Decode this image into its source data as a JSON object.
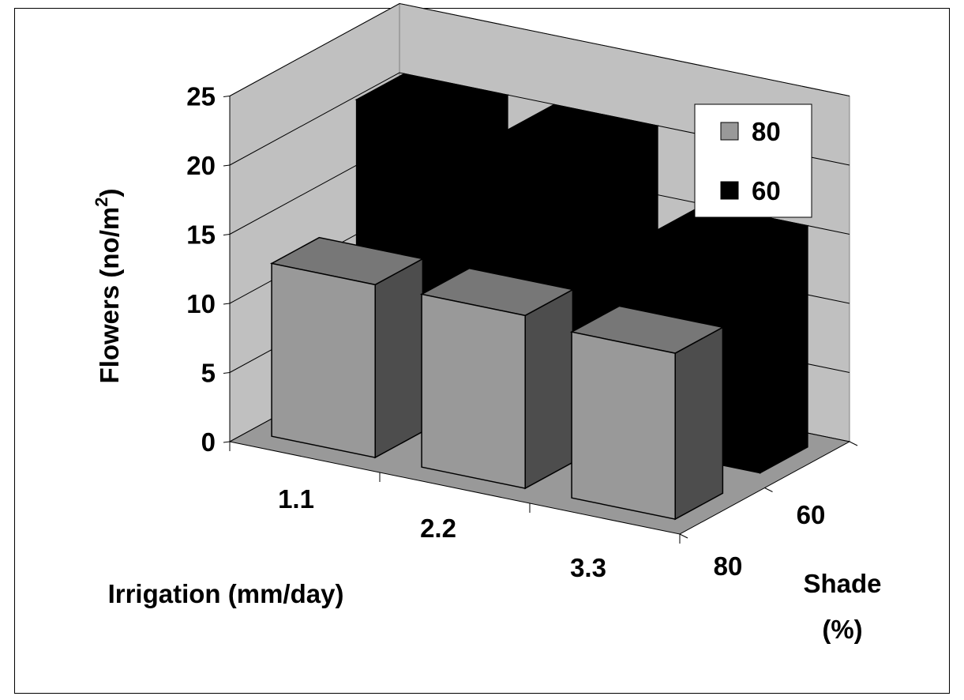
{
  "chart_data": {
    "type": "bar",
    "title": "",
    "xlabel": "Irrigation (mm/day)",
    "ylabel": "Flowers (no/m",
    "ylabel_sup": "2",
    "ylabel_close": ")",
    "zlabel_line1": "Shade",
    "zlabel_line2": "(%)",
    "categories": [
      "1.1",
      "2.2",
      "3.3"
    ],
    "depth_categories": [
      "80",
      "60"
    ],
    "ylim": [
      0,
      25
    ],
    "yticks": [
      "0",
      "5",
      "10",
      "15",
      "20",
      "25"
    ],
    "grid": true,
    "legend_position": "top-right",
    "series": [
      {
        "name": "80",
        "values": [
          12.5,
          12.5,
          12.0
        ],
        "color": "#999999",
        "side_color": "#4d4d4d",
        "top_color": "#777777"
      },
      {
        "name": "60",
        "values": [
          21.0,
          21.0,
          16.0
        ],
        "color": "#000000",
        "side_color": "#000000",
        "top_color": "#000000"
      }
    ]
  }
}
